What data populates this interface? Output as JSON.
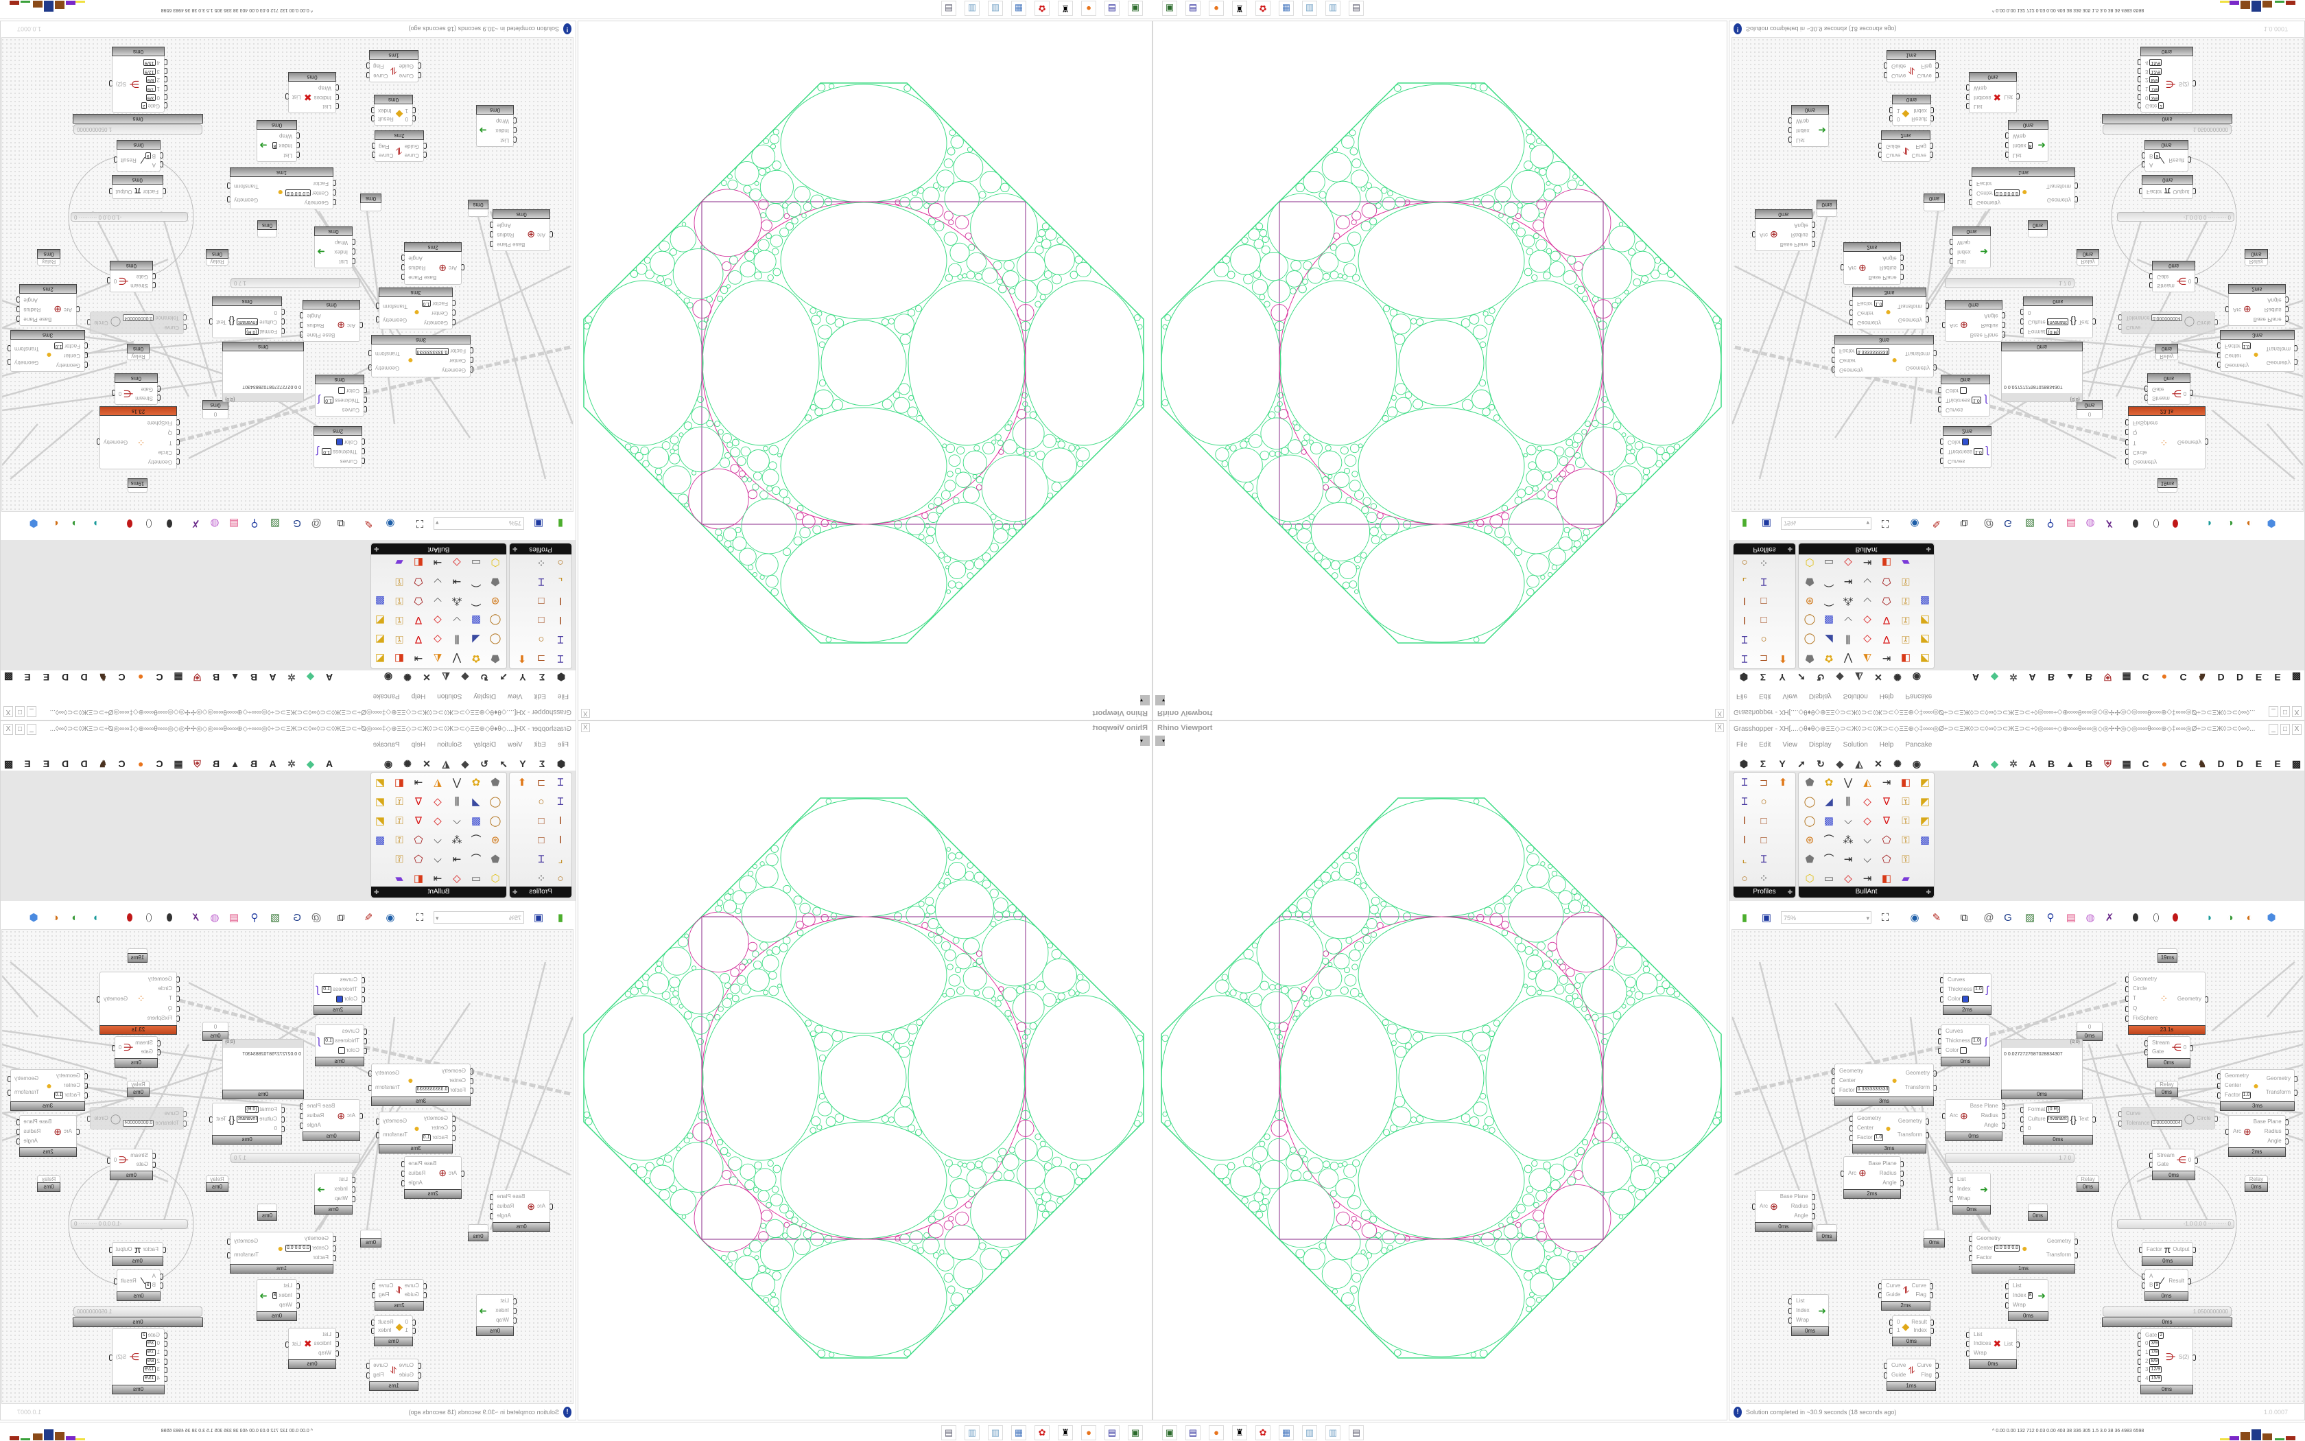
{
  "viewport": {
    "title": "Rhino Viewport",
    "close": "X",
    "dropdown": "▾",
    "colors": {
      "packing": "#3ddc84",
      "inscribed_circle": "#e0309a",
      "square": "#8a2a8a",
      "corner_circles": "#d0309a"
    }
  },
  "gh": {
    "title": "Grasshopper - XH[....◇θ♦θ◇⊕ΞΞ◇⊃⊂Ж◊⊃⊂◊Ж⊃⊂◇ΞΞ⊕◇‡∞∞◎Ø÷⊃⊂ΞЖ◊⊃⊂◊∞◊⊃⊂ЖΞ⊃⊂÷◊◎∞∞÷◇⊕∞∞θ∞∞◎◇◎✢✢◎◇◎∞∞θ∞∞⊕◇‡∞∞◎Ø÷⊃⊂ΞЖ◊⊃⊂◊∞◊...",
    "window_buttons": [
      "_",
      "□",
      "X"
    ],
    "menu": [
      "File",
      "Edit",
      "View",
      "Display",
      "Solution",
      "Help",
      "Pancake"
    ],
    "tabs_left": [
      {
        "icon": "params-hexagon-icon"
      },
      {
        "icon": "maths-sigma-icon"
      },
      {
        "icon": "sets-y-icon"
      },
      {
        "icon": "vector-arrow-icon"
      },
      {
        "icon": "curve-hook-icon"
      },
      {
        "icon": "surface-icon"
      },
      {
        "icon": "mesh-icon"
      },
      {
        "icon": "intersect-icon"
      },
      {
        "icon": "transform-icon"
      },
      {
        "icon": "display-eye-icon"
      }
    ],
    "tabs_right": [
      {
        "label": "A"
      },
      {
        "icon": "crystal-icon"
      },
      {
        "icon": "gear-badge-icon"
      },
      {
        "label": "A"
      },
      {
        "label": "B"
      },
      {
        "icon": "mountain-icon"
      },
      {
        "label": "B"
      },
      {
        "icon": "shield-icon"
      },
      {
        "icon": "grid-icon"
      },
      {
        "label": "C"
      },
      {
        "icon": "orange-circle-icon"
      },
      {
        "label": "C"
      },
      {
        "icon": "bird-icon"
      },
      {
        "label": "D"
      },
      {
        "label": "D"
      },
      {
        "label": "E"
      },
      {
        "label": "E"
      },
      {
        "icon": "grid-dark-icon"
      }
    ],
    "palette": [
      {
        "name": "Profiles",
        "icons": [
          "i-beam-profile",
          "channel-profile",
          "fire-profile",
          "i-beam-profile",
          "pipe-profile",
          "",
          "i-section",
          "box-section",
          "",
          "i-section",
          "box-section",
          "",
          "angle-section",
          "i-beam-profile",
          "",
          "pipe-profile",
          "points-profile",
          ""
        ]
      },
      {
        "name": "BullAnt",
        "icons": [
          "solid-shapes",
          "flower-grid",
          "vee-points",
          "triangle-fill",
          "list-arrow",
          "warp-surface",
          "frame-surface",
          "pipe-ring",
          "plane-cut",
          "three-bars",
          "red-quad",
          "red-vee",
          "lock-pump",
          "frame-surface",
          "pipe-ring",
          "cube-grid",
          "polyline",
          "red-quad",
          "red-vee",
          "lock-pump",
          "frame-surface",
          "sphere-grid",
          "curve-points",
          "scatter-points",
          "polyline",
          "polygon-nodes",
          "lock-pump",
          "cube-grid",
          "solid-shapes",
          "curve-points",
          "list-arrow",
          "polyline",
          "polygon-nodes",
          "lock-pump",
          "",
          "gem-shape",
          "frame-plate",
          "red-quad",
          "list-arrow",
          "warp-surface",
          "rainbow-surface",
          ""
        ]
      }
    ],
    "toolbar": {
      "zoom": "75%",
      "icons": [
        "open-file-icon",
        "save-icon",
        "zoom-extents-icon",
        "preview-eye-icon",
        "sketch-icon",
        "cluster-icon",
        "email-icon",
        "gha-icon",
        "canvas-image-icon",
        "search-icon",
        "package-icon",
        "bulb-icon",
        "wires-icon",
        "shaded-preview-icon",
        "wire-preview-icon",
        "red-preview-icon",
        "teal-preview-icon",
        "green-preview-icon",
        "orange-preview-icon",
        "blue-preview-icon"
      ]
    },
    "components": [
      {
        "inputs": [
          {
            "label": "Curves"
          },
          {
            "label": "Thickness",
            "value": "1.0"
          },
          {
            "label": "Color",
            "swatch": "#3050d0"
          }
        ],
        "outputs": [],
        "icon": "curve-display",
        "time": "2ms"
      },
      {
        "inputs": [
          {
            "label": "Curves"
          },
          {
            "label": "Thickness",
            "value": "1.0"
          },
          {
            "label": "Color",
            "swatch": "#ffffff"
          }
        ],
        "outputs": [],
        "icon": "curve-display",
        "time": "0ms"
      },
      {
        "kind": "param",
        "label": "0",
        "time": "0ms"
      },
      {
        "kind": "panel",
        "header": "{0;0}",
        "line": "0  0.0272727687028834307",
        "time": "0ms"
      },
      {
        "inputs": [
          {
            "label": "Geometry"
          },
          {
            "label": "Circle"
          },
          {
            "label": "T"
          },
          {
            "label": "Q"
          },
          {
            "label": "FixSphere"
          }
        ],
        "outputs": [
          "Geometry"
        ],
        "icon": "packing",
        "time": "23.1s",
        "state": "slow"
      },
      {
        "inputs": [
          {
            "label": "Stream"
          },
          {
            "label": "Gate"
          }
        ],
        "outputs": [
          "0"
        ],
        "icon": "stream-gate",
        "time": "0ms"
      },
      {
        "kind": "param",
        "label": "Relay",
        "time": "0ms"
      },
      {
        "inputs": [
          {
            "label": "Geometry"
          },
          {
            "label": "Center"
          },
          {
            "label": "Factor",
            "value": "0.3333333333"
          }
        ],
        "outputs": [
          "Geometry",
          "Transform"
        ],
        "icon": "scale",
        "time": "3ms"
      },
      {
        "inputs": [
          {
            "label": "Geometry"
          },
          {
            "label": "Center"
          },
          {
            "label": "Factor",
            "value": "1.0"
          }
        ],
        "outputs": [
          "Geometry",
          "Transform"
        ],
        "icon": "scale",
        "time": "3ms"
      },
      {
        "inputs": [
          {
            "label": "Arc"
          }
        ],
        "outputs": [
          "Base Plane",
          "Radius",
          "Angle"
        ],
        "icon": "arc",
        "time": "0ms"
      },
      {
        "inputs": [
          {
            "label": "Format",
            "value": "{0:R}"
          },
          {
            "label": "Culture",
            "value": "Invariant"
          },
          {
            "label": "0"
          }
        ],
        "outputs": [
          "Text"
        ],
        "icon": "format",
        "time": "0ms"
      },
      {
        "inputs": [
          {
            "label": "Curve"
          },
          {
            "label": "Tolerance",
            "value": "0.000000004"
          }
        ],
        "outputs": [
          "Circle"
        ],
        "icon": "fit-circle",
        "time": "",
        "state": "disabled"
      },
      {
        "inputs": [
          {
            "label": "Geometry"
          },
          {
            "label": "Center"
          },
          {
            "label": "Factor",
            "value": "1.0"
          }
        ],
        "outputs": [
          "Geometry",
          "Transform"
        ],
        "icon": "scale",
        "time": "3ms"
      },
      {
        "inputs": [
          {
            "label": "Arc"
          }
        ],
        "outputs": [
          "Base Plane",
          "Radius",
          "Angle"
        ],
        "icon": "arc",
        "time": "2ms"
      },
      {
        "kind": "slider",
        "text": "1 7 0"
      },
      {
        "inputs": [
          {
            "label": "Stream"
          },
          {
            "label": "Gate"
          }
        ],
        "outputs": [
          "0"
        ],
        "icon": "stream-gate",
        "time": "0ms"
      },
      {
        "kind": "param",
        "label": "",
        "time": "19ms"
      },
      {
        "inputs": [
          {
            "label": "Arc"
          }
        ],
        "outputs": [
          "Base Plane",
          "Radius",
          "Angle"
        ],
        "icon": "arc",
        "time": "2ms"
      },
      {
        "inputs": [
          {
            "label": "Arc"
          }
        ],
        "outputs": [
          "Base Plane",
          "Radius",
          "Angle"
        ],
        "icon": "arc",
        "time": "0ms"
      },
      {
        "kind": "param",
        "label": "",
        "time": "0ms"
      },
      {
        "inputs": [
          {
            "label": "List"
          },
          {
            "label": "Index"
          },
          {
            "label": "Wrap"
          }
        ],
        "outputs": [],
        "icon": "list-item",
        "time": "0ms"
      },
      {
        "kind": "param",
        "label": "",
        "time": "0ms"
      },
      {
        "kind": "param",
        "label": "",
        "time": "0ms"
      },
      {
        "kind": "param",
        "label": "Relay",
        "time": "0ms"
      },
      {
        "kind": "param",
        "label": "Relay",
        "time": "0ms"
      },
      {
        "kind": "slider",
        "text": "-1.0  0.0  0  ·········· 0"
      },
      {
        "inputs": [
          {
            "label": "Geometry"
          },
          {
            "label": "Center",
            "value": "0.0 0.0 0.0"
          },
          {
            "label": "Factor"
          }
        ],
        "outputs": [
          "Geometry",
          "Transform"
        ],
        "icon": "scale",
        "time": "1ms"
      },
      {
        "inputs": [
          {
            "label": "Factor"
          }
        ],
        "outputs": [
          "Output"
        ],
        "icon": "pi",
        "time": "0ms"
      },
      {
        "inputs": [
          {
            "label": "A"
          },
          {
            "label": "B",
            "value": "9"
          }
        ],
        "outputs": [
          "Result"
        ],
        "icon": "division",
        "time": "0ms"
      },
      {
        "inputs": [
          {
            "label": "Curve"
          },
          {
            "label": "Guide"
          }
        ],
        "outputs": [
          "Curve",
          "Flag"
        ],
        "icon": "flip",
        "time": "2ms"
      },
      {
        "inputs": [
          {
            "label": "List"
          },
          {
            "label": "Index",
            "value": "8"
          },
          {
            "label": "Wrap"
          }
        ],
        "outputs": [],
        "icon": "list-item",
        "time": "0ms"
      },
      {
        "inputs": [
          {
            "label": "List"
          },
          {
            "label": "Index"
          },
          {
            "label": "Wrap"
          }
        ],
        "outputs": [],
        "icon": "list-item",
        "time": "0ms"
      },
      {
        "inputs": [
          {
            "label": "0"
          },
          {
            "label": "1"
          }
        ],
        "outputs": [
          "Result",
          "Index"
        ],
        "icon": "dispatch",
        "time": "0ms"
      },
      {
        "inputs": [
          {
            "label": "List"
          },
          {
            "label": "Indices"
          },
          {
            "label": "Wrap"
          }
        ],
        "outputs": [
          "List"
        ],
        "icon": "cull-index",
        "time": "0ms"
      },
      {
        "inputs": [
          {
            "label": "Curve"
          },
          {
            "label": "Guide"
          }
        ],
        "outputs": [
          "Curve",
          "Flag"
        ],
        "icon": "flip",
        "time": "1ms"
      },
      {
        "kind": "slider",
        "text": "1.0500000000",
        "time": "0ms"
      },
      {
        "inputs": [
          {
            "label": "Gate",
            "value": "2"
          },
          {
            "label": "0",
            "value": "3/9"
          },
          {
            "label": "1",
            "value": "7/9"
          },
          {
            "label": "2",
            "value": "8/9"
          },
          {
            "label": "3",
            "value": "12/9"
          },
          {
            "label": "4",
            "value": "15/9"
          }
        ],
        "outputs": [
          "S(2)"
        ],
        "icon": "stream-filter",
        "time": "0ms"
      }
    ],
    "status": {
      "message": "Solution completed in ~30.9 seconds (18 seconds ago)",
      "version": "1.0.0007"
    }
  },
  "taskbar": {
    "icons": [
      "device-icon",
      "floppy-64-icon",
      "firefox-icon",
      "rhino-icon",
      "red-app-icon",
      "calculator-icon",
      "notepad-icon",
      "notepad-icon",
      "printer-icon"
    ],
    "tray_text": "^  0.00 0.00 132 712 0.03 0.00 403  38  336 305  1.5  3.0  38  36 4983 6598"
  }
}
